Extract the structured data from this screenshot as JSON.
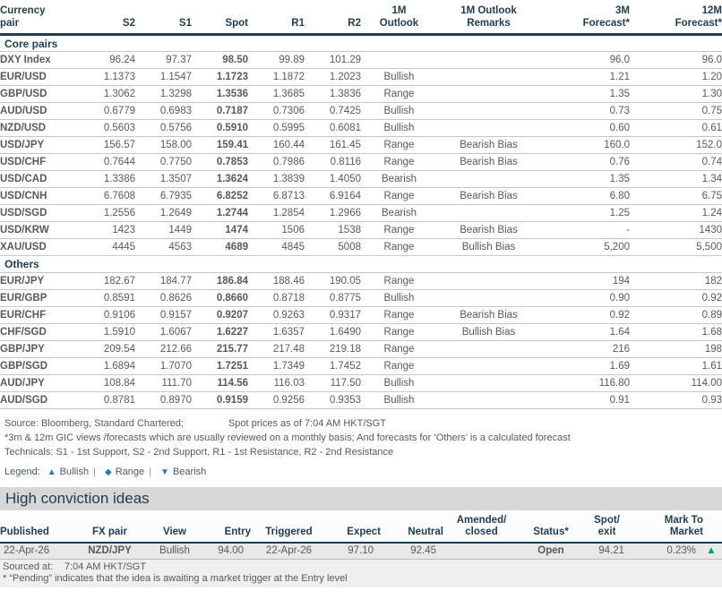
{
  "colors": {
    "navy": "#1f3c51",
    "bullish_green": "#00a651",
    "range_orange": "#f2a900",
    "bearish_red": "#e80000",
    "legend_blue": "#1c80b4",
    "title_band_gray": "#d7d7d7",
    "data_row_gray": "#e8e8e8"
  },
  "fx_table": {
    "headers": {
      "pair": "Currency\npair",
      "s2": "S2",
      "s1": "S1",
      "spot": "Spot",
      "r1": "R1",
      "r2": "R2",
      "outlook": "1M\nOutlook",
      "remarks": "1M Outlook\nRemarks",
      "f3m": "3M\nForecast*",
      "f12m": "12M\nForecast*"
    },
    "sections": [
      {
        "label": "Core pairs",
        "rows": [
          {
            "pair": "DXY Index",
            "s2": "96.24",
            "s1": "97.37",
            "spot": "98.50",
            "r1": "99.89",
            "r2": "101.29",
            "outlook": "",
            "remarks": "",
            "f3m": "96.0",
            "f12m": "96.0"
          },
          {
            "pair": "EUR/USD",
            "s2": "1.1373",
            "s1": "1.1547",
            "spot": "1.1723",
            "r1": "1.1872",
            "r2": "1.2023",
            "outlook": "Bullish",
            "remarks": "",
            "f3m": "1.21",
            "f12m": "1.20"
          },
          {
            "pair": "GBP/USD",
            "s2": "1.3062",
            "s1": "1.3298",
            "spot": "1.3536",
            "r1": "1.3685",
            "r2": "1.3836",
            "outlook": "Range",
            "remarks": "",
            "f3m": "1.35",
            "f12m": "1.30"
          },
          {
            "pair": "AUD/USD",
            "s2": "0.6779",
            "s1": "0.6983",
            "spot": "0.7187",
            "r1": "0.7306",
            "r2": "0.7425",
            "outlook": "Bullish",
            "remarks": "",
            "f3m": "0.73",
            "f12m": "0.75"
          },
          {
            "pair": "NZD/USD",
            "s2": "0.5603",
            "s1": "0.5756",
            "spot": "0.5910",
            "r1": "0.5995",
            "r2": "0.6081",
            "outlook": "Bullish",
            "remarks": "",
            "f3m": "0.60",
            "f12m": "0.61"
          },
          {
            "pair": "USD/JPY",
            "s2": "156.57",
            "s1": "158.00",
            "spot": "159.41",
            "r1": "160.44",
            "r2": "161.45",
            "outlook": "Range",
            "remarks": "Bearish Bias",
            "f3m": "160.0",
            "f12m": "152.0"
          },
          {
            "pair": "USD/CHF",
            "s2": "0.7644",
            "s1": "0.7750",
            "spot": "0.7853",
            "r1": "0.7986",
            "r2": "0.8116",
            "outlook": "Range",
            "remarks": "Bearish Bias",
            "f3m": "0.76",
            "f12m": "0.74"
          },
          {
            "pair": "USD/CAD",
            "s2": "1.3386",
            "s1": "1.3507",
            "spot": "1.3624",
            "r1": "1.3839",
            "r2": "1.4050",
            "outlook": "Bearish",
            "remarks": "",
            "f3m": "1.35",
            "f12m": "1.34"
          },
          {
            "pair": "USD/CNH",
            "s2": "6.7608",
            "s1": "6.7935",
            "spot": "6.8252",
            "r1": "6.8713",
            "r2": "6.9164",
            "outlook": "Range",
            "remarks": "Bearish Bias",
            "f3m": "6.80",
            "f12m": "6.75"
          },
          {
            "pair": "USD/SGD",
            "s2": "1.2556",
            "s1": "1.2649",
            "spot": "1.2744",
            "r1": "1.2854",
            "r2": "1.2966",
            "outlook": "Bearish",
            "remarks": "",
            "f3m": "1.25",
            "f12m": "1.24"
          },
          {
            "pair": "USD/KRW",
            "s2": "1423",
            "s1": "1449",
            "spot": "1474",
            "r1": "1506",
            "r2": "1538",
            "outlook": "Range",
            "remarks": "Bearish Bias",
            "f3m": "-",
            "f12m": "1430"
          },
          {
            "pair": "XAU/USD",
            "s2": "4445",
            "s1": "4563",
            "spot": "4689",
            "r1": "4845",
            "r2": "5008",
            "outlook": "Range",
            "remarks": "Bullish Bias",
            "f3m": "5,200",
            "f12m": "5,500"
          }
        ]
      },
      {
        "label": "Others",
        "rows": [
          {
            "pair": "EUR/JPY",
            "s2": "182.67",
            "s1": "184.77",
            "spot": "186.84",
            "r1": "188.46",
            "r2": "190.05",
            "outlook": "Range",
            "remarks": "",
            "f3m": "194",
            "f12m": "182"
          },
          {
            "pair": "EUR/GBP",
            "s2": "0.8591",
            "s1": "0.8626",
            "spot": "0.8660",
            "r1": "0.8718",
            "r2": "0.8775",
            "outlook": "Bullish",
            "remarks": "",
            "f3m": "0.90",
            "f12m": "0.92"
          },
          {
            "pair": "EUR/CHF",
            "s2": "0.9106",
            "s1": "0.9157",
            "spot": "0.9207",
            "r1": "0.9263",
            "r2": "0.9317",
            "outlook": "Range",
            "remarks": "Bearish Bias",
            "f3m": "0.92",
            "f12m": "0.89"
          },
          {
            "pair": "CHF/SGD",
            "s2": "1.5910",
            "s1": "1.6067",
            "spot": "1.6227",
            "r1": "1.6357",
            "r2": "1.6490",
            "outlook": "Range",
            "remarks": "Bullish Bias",
            "f3m": "1.64",
            "f12m": "1.68"
          },
          {
            "pair": "GBP/JPY",
            "s2": "209.54",
            "s1": "212.66",
            "spot": "215.77",
            "r1": "217.48",
            "r2": "219.18",
            "outlook": "Range",
            "remarks": "",
            "f3m": "216",
            "f12m": "198"
          },
          {
            "pair": "GBP/SGD",
            "s2": "1.6894",
            "s1": "1.7070",
            "spot": "1.7251",
            "r1": "1.7349",
            "r2": "1.7452",
            "outlook": "Range",
            "remarks": "",
            "f3m": "1.69",
            "f12m": "1.61"
          },
          {
            "pair": "AUD/JPY",
            "s2": "108.84",
            "s1": "111.70",
            "spot": "114.56",
            "r1": "116.03",
            "r2": "117.50",
            "outlook": "Bullish",
            "remarks": "",
            "f3m": "116.80",
            "f12m": "114.00"
          },
          {
            "pair": "AUD/SGD",
            "s2": "0.8781",
            "s1": "0.8970",
            "spot": "0.9159",
            "r1": "0.9256",
            "r2": "0.9353",
            "outlook": "Bullish",
            "remarks": "",
            "f3m": "0.91",
            "f12m": "0.93"
          }
        ]
      }
    ]
  },
  "footnotes": {
    "source": "Source: Bloomberg, Standard Chartered;",
    "spot_asof": "Spot prices as of 7:04 AM HKT/SGT",
    "forecast_note": "*3m & 12m GIC views /forecasts which are usually reviewed on a monthly basis; And forecasts for ‘Others’ is a calculated forecast",
    "technicals_note": "Technicals: S1 - 1st Support, S2 - 2nd Support, R1 - 1st Resistance, R2 - 2nd Resistance",
    "legend_label": "Legend:",
    "legend_items": [
      {
        "icon": "up-triangle-icon",
        "glyph": "▲",
        "label": "Bullish"
      },
      {
        "icon": "diamond-icon",
        "glyph": "◆",
        "label": "Range"
      },
      {
        "icon": "down-triangle-icon",
        "glyph": "▼",
        "label": "Bearish"
      }
    ]
  },
  "high_conviction": {
    "title": "High conviction ideas",
    "headers": {
      "published": "Published",
      "fx_pair": "FX pair",
      "view": "View",
      "entry": "Entry",
      "triggered": "Triggered",
      "expect": "Expect",
      "neutral": "Neutral",
      "amended": "Amended/\nclosed",
      "status": "Status*",
      "spot_exit": "Spot/\nexit",
      "mtm": "Mark To\nMarket"
    },
    "rows": [
      {
        "published": "22-Apr-26",
        "fx_pair": "NZD/JPY",
        "view": "Bullish",
        "entry": "94.00",
        "triggered": "22-Apr-26",
        "expect": "97.10",
        "neutral": "92.45",
        "amended": "",
        "status": "Open",
        "spot_exit": "94.21",
        "mtm": "0.23%",
        "mtm_direction": "up"
      }
    ],
    "sourced_at_label": "Sourced at:",
    "sourced_at_value": "7:04 AM HKT/SGT",
    "pending_note": "* “Pending” indicates that the idea is awaiting a market trigger at the Entry level"
  }
}
